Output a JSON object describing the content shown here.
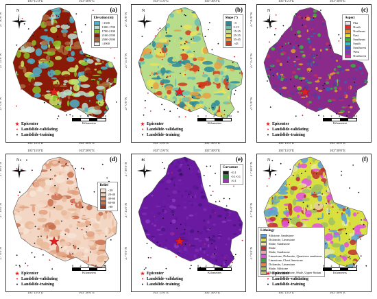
{
  "axis": {
    "top_ticks": [
      "103°15'0\"E",
      "103°30'0\"E"
    ],
    "bottom_ticks": [
      "103°15'0\"E",
      "103°30'0\"E"
    ],
    "left_ticks": [
      "27°30'0\"N",
      "27°15'0\"N",
      "27°0'0\"N"
    ]
  },
  "north_label": "N",
  "points_legend": {
    "epicenter": "Epicenter",
    "validating": "Landslide-validating",
    "training": "Landslide-training"
  },
  "scale": {
    "numbers": [
      "0",
      "2",
      "4",
      "8",
      "12"
    ],
    "unit": "Kilometers"
  },
  "panels": [
    {
      "label": "(a)",
      "legend_title": "Elevation (m)",
      "legend_items": [
        {
          "text": "<1300",
          "color": "#4fb3c9"
        },
        {
          "text": "1300-1700",
          "color": "#b8dfd0"
        },
        {
          "text": "1700-2100",
          "color": "#8bbf2a"
        },
        {
          "text": "2100-2500",
          "color": "#8a1a08"
        },
        {
          "text": "2500-2900",
          "color": "#a86a3a"
        },
        {
          "text": ">2900",
          "color": "#f5f0e8"
        }
      ],
      "fill_colors": [
        "#8a1a08",
        "#8bbf2a",
        "#b8dfd0",
        "#4fb3c9",
        "#a86a3a",
        "#c8e86a"
      ]
    },
    {
      "label": "(b)",
      "legend_title": "Slope (°)",
      "legend_items": [
        {
          "text": "<5",
          "color": "#2a8a9a"
        },
        {
          "text": "5-15",
          "color": "#6dbfb0"
        },
        {
          "text": "15-25",
          "color": "#b7dc8a"
        },
        {
          "text": "25-35",
          "color": "#e8e35c"
        },
        {
          "text": "35-45",
          "color": "#e8a040"
        },
        {
          "text": ">45",
          "color": "#d03a1a"
        }
      ],
      "fill_colors": [
        "#b7dc8a",
        "#e8e35c",
        "#6dbfb0",
        "#e8a040",
        "#2a8a9a",
        "#d03a1a"
      ]
    },
    {
      "label": "(c)",
      "legend_title": "Aspect",
      "legend_items": [
        {
          "text": "Flat",
          "color": "#e8e8e8"
        },
        {
          "text": "North",
          "color": "#e03030"
        },
        {
          "text": "Northeast",
          "color": "#e88a2a"
        },
        {
          "text": "East",
          "color": "#e8e030"
        },
        {
          "text": "Southeast",
          "color": "#3ab03a"
        },
        {
          "text": "South",
          "color": "#30c0c0"
        },
        {
          "text": "Southwest",
          "color": "#3060d0"
        },
        {
          "text": "West",
          "color": "#9030c0"
        },
        {
          "text": "Northwest",
          "color": "#d030a0"
        }
      ],
      "fill_colors": [
        "#8a2a8a",
        "#5a3a9a",
        "#3ab03a",
        "#c03060",
        "#2a6ab0",
        "#e0a030"
      ]
    },
    {
      "label": "(d)",
      "legend_title": "Relief",
      "legend_items": [
        {
          "text": "<20",
          "color": "#f6e4d6"
        },
        {
          "text": "20-40",
          "color": "#efc9b0"
        },
        {
          "text": "40-60",
          "color": "#e0a080"
        },
        {
          "text": "60-80",
          "color": "#c8704f"
        },
        {
          "text": ">80",
          "color": "#9a3a22"
        }
      ],
      "fill_colors": [
        "#f3d6c4",
        "#efc9b0",
        "#e0a080",
        "#f6e4d6",
        "#c8704f",
        "#e8b898"
      ]
    },
    {
      "label": "(e)",
      "legend_title": "Curvature",
      "legend_items": [
        {
          "text": "<0.1",
          "color": "#1a1a1a"
        },
        {
          "text": "-0.1-0.1",
          "color": "#2a8a3a"
        },
        {
          "text": ">0.1",
          "color": "#9a3ab0"
        }
      ],
      "fill_colors": [
        "#6a1aa0",
        "#5a1890",
        "#7a2ab0",
        "#4a1480",
        "#8a3ac0",
        "#6a20a8"
      ]
    },
    {
      "label": "(f)",
      "legend_title": "Lithology",
      "legend_items": [
        {
          "text": "Siltstone, Sandstone",
          "color": "#5aa0d8"
        },
        {
          "text": "Dolomite, Limestone",
          "color": "#d8e040"
        },
        {
          "text": "Shale, Sandstone",
          "color": "#e8e8a0"
        },
        {
          "text": "Shale",
          "color": "#c03030"
        },
        {
          "text": "Shale, Sandstone",
          "color": "#f0a0b0"
        },
        {
          "text": "Limestone, Dolomite, Quartzose sandstone",
          "color": "#e050e0"
        },
        {
          "text": "Limestone, Chert limestone",
          "color": "#40a040"
        },
        {
          "text": "Dolomite, Limestone",
          "color": "#f08040"
        },
        {
          "text": "Shale, Siltstone",
          "color": "#a0c060"
        },
        {
          "text": "Dolomite, Sandstone, Shale, Upper Sinian",
          "color": "#c0c080"
        }
      ],
      "fill_colors": [
        "#d8e040",
        "#e8e8a0",
        "#c03030",
        "#e050e0",
        "#5aa0d8",
        "#a0c060"
      ]
    }
  ]
}
